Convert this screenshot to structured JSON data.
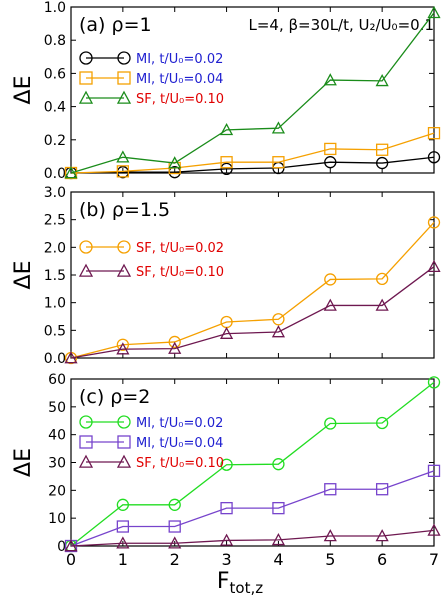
{
  "figure": {
    "header": "L=4, β=30L/t, U₂/U₀=0.1",
    "xlabel": "F",
    "xlabel_sub": "tot,z"
  },
  "chart_data": [
    {
      "type": "line",
      "panel_label": "(a) ρ=1",
      "ylabel": "ΔE",
      "xlim": [
        0,
        7
      ],
      "ylim": [
        0,
        1.0
      ],
      "yticks": [
        "0.0",
        "0.2",
        "0.4",
        "0.6",
        "0.8",
        "1.0"
      ],
      "ytick_values": [
        0,
        0.2,
        0.4,
        0.6,
        0.8,
        1.0
      ],
      "x": [
        0,
        1,
        2,
        3,
        4,
        5,
        6,
        7
      ],
      "series": [
        {
          "name": "MI, t/U₀=0.02",
          "marker": "circle",
          "color": "#000000",
          "label_color": "#1f1fd0",
          "values": [
            0.0,
            0.005,
            0.005,
            0.025,
            0.03,
            0.065,
            0.06,
            0.095
          ]
        },
        {
          "name": "MI, t/U₀=0.04",
          "marker": "square",
          "color": "#f5a000",
          "label_color": "#1f1fd0",
          "values": [
            0.0,
            0.01,
            0.03,
            0.065,
            0.065,
            0.145,
            0.14,
            0.24
          ]
        },
        {
          "name": "SF, t/U₀=0.10",
          "marker": "triangle",
          "color": "#1a8c1a",
          "label_color": "#e00000",
          "values": [
            0.0,
            0.095,
            0.06,
            0.26,
            0.27,
            0.56,
            0.555,
            0.965
          ]
        }
      ]
    },
    {
      "type": "line",
      "panel_label": "(b) ρ=1.5",
      "ylabel": "ΔE",
      "xlim": [
        0,
        7
      ],
      "ylim": [
        0,
        3.0
      ],
      "yticks": [
        "0.0",
        "0.5",
        "1.0",
        "1.5",
        "2.0",
        "2.5",
        "3.0"
      ],
      "ytick_values": [
        0,
        0.5,
        1.0,
        1.5,
        2.0,
        2.5,
        3.0
      ],
      "x": [
        0,
        1,
        2,
        3,
        4,
        5,
        6,
        7
      ],
      "series": [
        {
          "name": "SF, t/U₀=0.02",
          "marker": "circle",
          "color": "#f5a000",
          "label_color": "#e00000",
          "values": [
            0.0,
            0.24,
            0.29,
            0.65,
            0.7,
            1.42,
            1.43,
            2.45
          ]
        },
        {
          "name": "SF, t/U₀=0.10",
          "marker": "triangle",
          "color": "#6e1850",
          "label_color": "#e00000",
          "values": [
            0.0,
            0.16,
            0.17,
            0.44,
            0.47,
            0.95,
            0.95,
            1.65
          ]
        }
      ]
    },
    {
      "type": "line",
      "panel_label": "(c) ρ=2",
      "ylabel": "ΔE",
      "xlim": [
        0,
        7
      ],
      "ylim": [
        0,
        60
      ],
      "yticks": [
        "0",
        "10",
        "20",
        "30",
        "40",
        "50",
        "60"
      ],
      "ytick_values": [
        0,
        10,
        20,
        30,
        40,
        50,
        60
      ],
      "x": [
        0,
        1,
        2,
        3,
        4,
        5,
        6,
        7
      ],
      "xticks": [
        "0",
        "1",
        "2",
        "3",
        "4",
        "5",
        "6",
        "7"
      ],
      "series": [
        {
          "name": "MI, t/U₀=0.02",
          "marker": "circle",
          "color": "#22dd22",
          "label_color": "#1f1fd0",
          "values": [
            0.0,
            14.8,
            14.8,
            29.2,
            29.4,
            44.0,
            44.2,
            58.8
          ]
        },
        {
          "name": "MI, t/U₀=0.04",
          "marker": "square",
          "color": "#7744cc",
          "label_color": "#1f1fd0",
          "values": [
            0.0,
            7.0,
            7.0,
            13.6,
            13.6,
            20.4,
            20.4,
            27.0
          ]
        },
        {
          "name": "SF, t/U₀=0.10",
          "marker": "triangle",
          "color": "#6e1850",
          "label_color": "#e00000",
          "values": [
            0.0,
            1.0,
            1.0,
            2.0,
            2.2,
            3.6,
            3.6,
            5.6
          ]
        }
      ]
    }
  ]
}
